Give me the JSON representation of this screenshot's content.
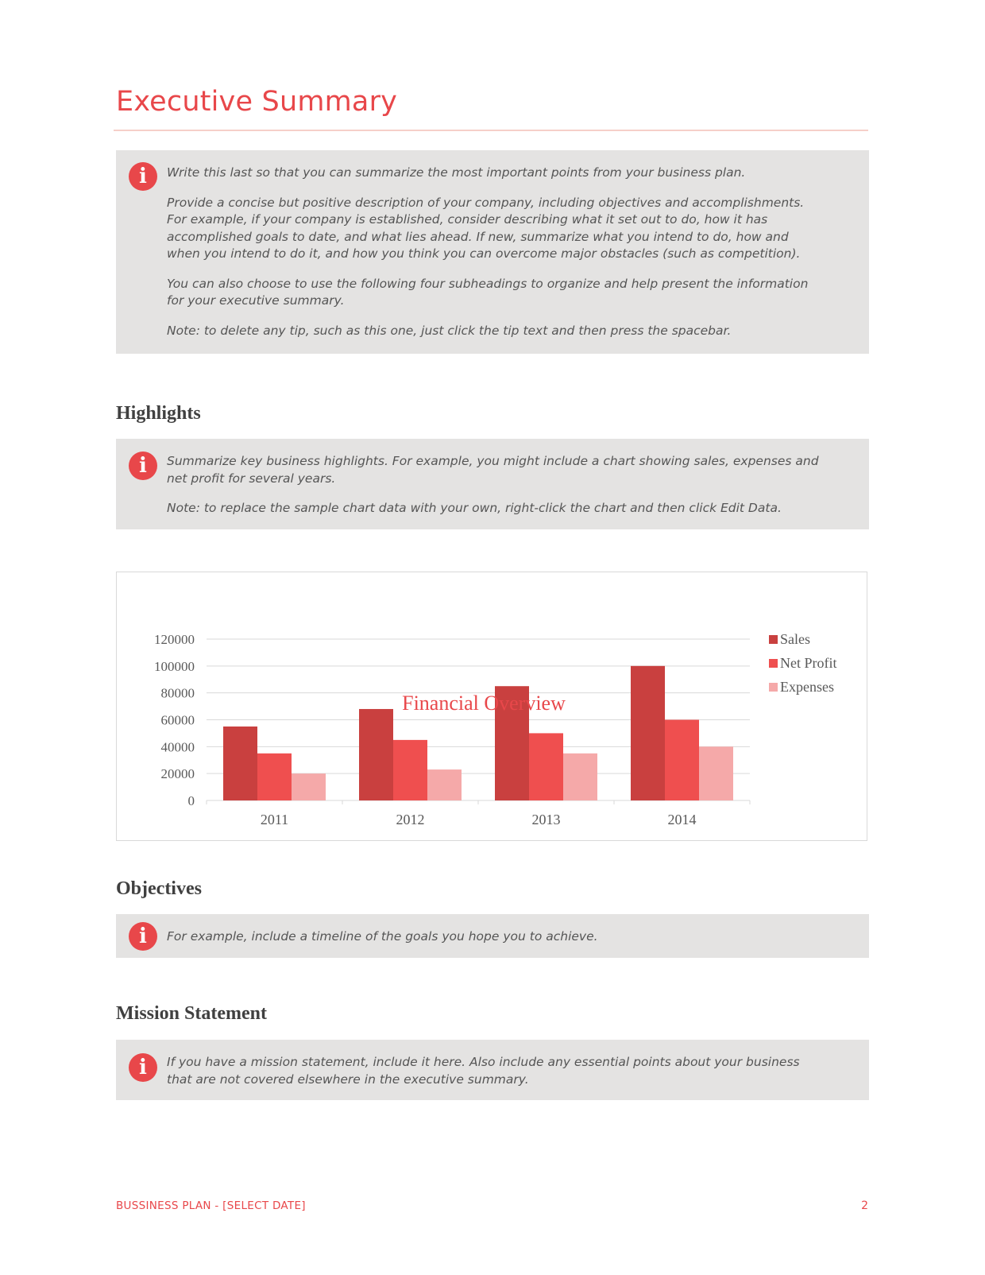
{
  "page_title": "Executive Summary",
  "intro_tip": {
    "icon": "info-icon",
    "paragraphs": [
      "Write this last so that you can summarize the most important points from your business plan.",
      "Provide a concise but positive description of your company, including objectives and accomplishments. For example, if your company is established, consider describing what it set out to do, how it has accomplished goals to date, and what lies ahead. If new, summarize what you intend to do, how and when you intend to do it, and how you think you can overcome major obstacles (such as competition).",
      "You can also choose to use the following four subheadings to organize and help present the information for your executive summary.",
      "Note: to delete any tip, such as this one, just click the tip text and then press the spacebar."
    ]
  },
  "highlights": {
    "heading": "Highlights",
    "tip": [
      "Summarize key business highlights. For example, you might include a chart showing sales, expenses and net profit for several years.",
      "Note: to replace the sample chart data with your own, right-click the chart and then click Edit Data."
    ]
  },
  "chart_data": {
    "type": "bar",
    "title": "Financial Overview",
    "categories": [
      "2011",
      "2012",
      "2013",
      "2014"
    ],
    "series": [
      {
        "name": "Sales",
        "values": [
          55000,
          68000,
          85000,
          100000
        ],
        "color": "#c9403f"
      },
      {
        "name": "Net Profit",
        "values": [
          35000,
          45000,
          50000,
          60000
        ],
        "color": "#ef4f4f"
      },
      {
        "name": "Expenses",
        "values": [
          20000,
          23000,
          35000,
          40000
        ],
        "color": "#f5a9a9"
      }
    ],
    "y_ticks": [
      "0",
      "20000",
      "40000",
      "60000",
      "80000",
      "100000",
      "120000"
    ],
    "ylim": [
      0,
      120000
    ],
    "grid": true,
    "legend_position": "right"
  },
  "objectives": {
    "heading": "Objectives",
    "tip": [
      "For example, include a timeline of the goals you hope you to achieve."
    ]
  },
  "mission": {
    "heading": "Mission Statement",
    "tip": [
      "If you have a mission statement, include it here. Also include any essential points about your business that are not covered elsewhere in the executive summary."
    ]
  },
  "footer": {
    "left": "BUSSINESS PLAN - [SELECT DATE]",
    "page_number": "2"
  },
  "colors": {
    "accent": "#e8474a",
    "tip_background": "#e4e3e2"
  }
}
